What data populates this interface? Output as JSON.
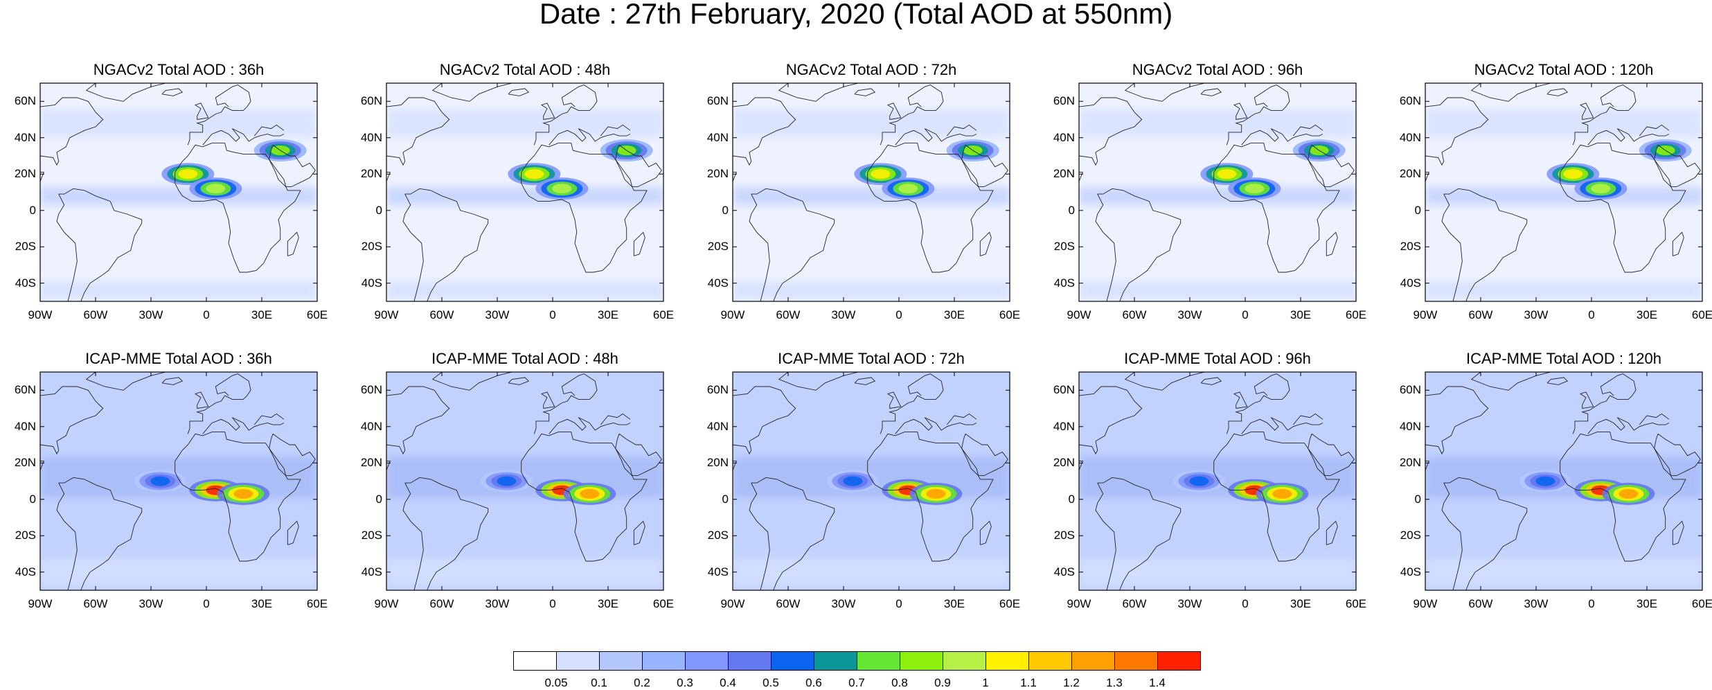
{
  "title": "Date : 27th February, 2020 (Total AOD at 550nm)",
  "lat_labels": [
    "60N",
    "40N",
    "20N",
    "0",
    "20S",
    "40S"
  ],
  "lat_values": [
    60,
    40,
    20,
    0,
    -20,
    -40
  ],
  "lon_labels": [
    "90W",
    "60W",
    "30W",
    "0",
    "30E",
    "60E"
  ],
  "lon_values": [
    -90,
    -60,
    -30,
    0,
    30,
    60
  ],
  "map_extent": {
    "lon": [
      -90,
      60
    ],
    "lat": [
      -50,
      70
    ]
  },
  "panels": [
    {
      "title": "NGACv2 Total AOD : 36h",
      "model": "NGACv2",
      "lead": "36h"
    },
    {
      "title": "NGACv2 Total AOD : 48h",
      "model": "NGACv2",
      "lead": "48h"
    },
    {
      "title": "NGACv2 Total AOD : 72h",
      "model": "NGACv2",
      "lead": "72h"
    },
    {
      "title": "NGACv2 Total AOD : 96h",
      "model": "NGACv2",
      "lead": "96h"
    },
    {
      "title": "NGACv2 Total AOD : 120h",
      "model": "NGACv2",
      "lead": "120h"
    },
    {
      "title": "ICAP-MME Total AOD : 36h",
      "model": "ICAP-MME",
      "lead": "36h"
    },
    {
      "title": "ICAP-MME Total AOD : 48h",
      "model": "ICAP-MME",
      "lead": "48h"
    },
    {
      "title": "ICAP-MME Total AOD : 72h",
      "model": "ICAP-MME",
      "lead": "72h"
    },
    {
      "title": "ICAP-MME Total AOD : 96h",
      "model": "ICAP-MME",
      "lead": "96h"
    },
    {
      "title": "ICAP-MME Total AOD : 120h",
      "model": "ICAP-MME",
      "lead": "120h"
    }
  ],
  "colorbar": {
    "labels": [
      "0.05",
      "0.1",
      "0.2",
      "0.3",
      "0.4",
      "0.5",
      "0.6",
      "0.7",
      "0.8",
      "0.9",
      "1",
      "1.1",
      "1.2",
      "1.3",
      "1.4"
    ],
    "colors": [
      "#ffffff",
      "#d6e1ff",
      "#b4c7ff",
      "#96b4ff",
      "#8296ff",
      "#6478f0",
      "#0a64f0",
      "#0a9696",
      "#64e632",
      "#8cf00a",
      "#b4f046",
      "#fff000",
      "#ffc800",
      "#ffa000",
      "#ff7800",
      "#ff2000"
    ]
  },
  "plumes": {
    "NGACv2": [
      {
        "lon": -10,
        "lat": 20,
        "value": 1.0
      },
      {
        "lon": 5,
        "lat": 12,
        "value": 0.9
      },
      {
        "lon": 40,
        "lat": 33,
        "value": 0.8
      }
    ],
    "ICAP-MME": [
      {
        "lon": 5,
        "lat": 5,
        "value": 1.4
      },
      {
        "lon": 20,
        "lat": 3,
        "value": 1.2
      },
      {
        "lon": -25,
        "lat": 10,
        "value": 0.5
      }
    ]
  }
}
